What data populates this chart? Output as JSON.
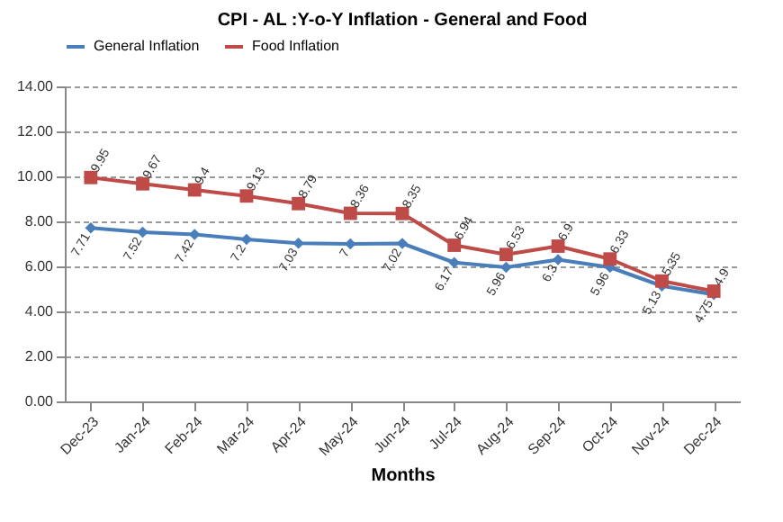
{
  "chart_data": {
    "type": "line",
    "title": "CPI - AL :Y-o-Y Inflation - General and Food",
    "xlabel": "Months",
    "categories": [
      "Dec-23",
      "Jan-24",
      "Feb-24",
      "Mar-24",
      "Apr-24",
      "May-24",
      "Jun-24",
      "Jul-24",
      "Aug-24",
      "Sep-24",
      "Oct-24",
      "Nov-24",
      "Dec-24"
    ],
    "series": [
      {
        "name": "General Inflation",
        "color": "#4a7ebb",
        "marker": "diamond",
        "values": [
          7.71,
          7.52,
          7.42,
          7.2,
          7.03,
          7,
          7.02,
          6.17,
          5.96,
          6.3,
          5.96,
          5.13,
          4.75
        ]
      },
      {
        "name": "Food Inflation",
        "color": "#be4b48",
        "marker": "square",
        "values": [
          9.95,
          9.67,
          9.4,
          9.13,
          8.79,
          8.36,
          8.35,
          6.94,
          6.53,
          6.9,
          6.33,
          5.35,
          4.9
        ]
      }
    ],
    "ylim": [
      0,
      14
    ],
    "yticks": [
      {
        "value": 0,
        "label": "0.00"
      },
      {
        "value": 2,
        "label": "2.00"
      },
      {
        "value": 4,
        "label": "4.00"
      },
      {
        "value": 6,
        "label": "6.00"
      },
      {
        "value": 8,
        "label": "8.00"
      },
      {
        "value": 10,
        "label": "10.00"
      },
      {
        "value": 12,
        "label": "12.00"
      },
      {
        "value": 14,
        "label": "14.00"
      }
    ],
    "grid": "y",
    "line_style": "solid",
    "legend": "top",
    "data_labels": true
  }
}
